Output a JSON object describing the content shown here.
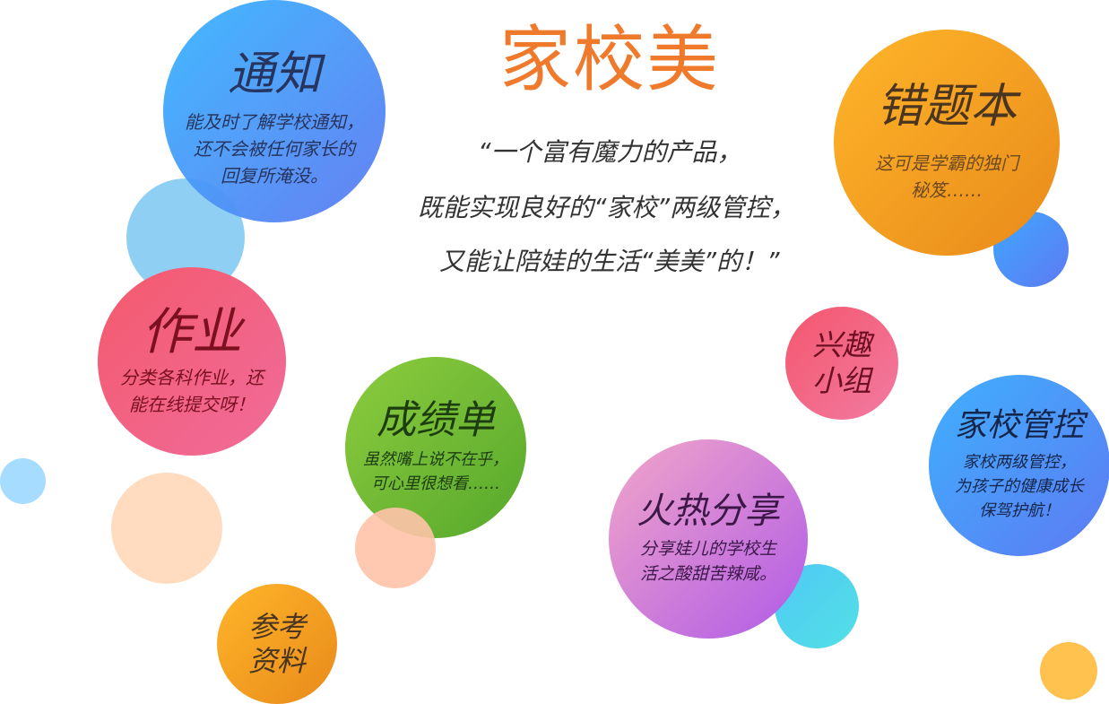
{
  "header": {
    "title": "家校美",
    "slogan_lines": [
      "“一个富有魔力的产品，",
      "既能实现良好的“家校”两级管控，",
      "又能让陪娃的生活“美美”的！”"
    ]
  },
  "bubbles": {
    "notice": {
      "title": "通知",
      "desc": "能及时了解学校通知，\n还不会被任何家长的\n回复所淹没。"
    },
    "mistakes": {
      "title": "错题本",
      "desc": "这可是学霸的独门\n秘笈……"
    },
    "homework": {
      "title": "作业",
      "desc": "分类各科作业，还\n能在线提交呀！"
    },
    "grades": {
      "title": "成绩单",
      "desc": "虽然嘴上说不在乎，\n可心里很想看……"
    },
    "sharing": {
      "title": "火热分享",
      "desc": "分享娃儿的学校生\n活之酸甜苦辣咸。"
    },
    "interest": {
      "title": "兴趣\n小组"
    },
    "control": {
      "title": "家校管控",
      "desc": "家校两级管控，\n为孩子的健康成长\n保驾护航！"
    },
    "reference": {
      "title": "参考\n资料"
    }
  },
  "colors": {
    "brand_orange": "#f07a2c",
    "blue": "#4a9ef5",
    "orange": "#f5a623",
    "pink": "#f45a6c",
    "green": "#7cc13a",
    "purple": "#c77dd8"
  }
}
